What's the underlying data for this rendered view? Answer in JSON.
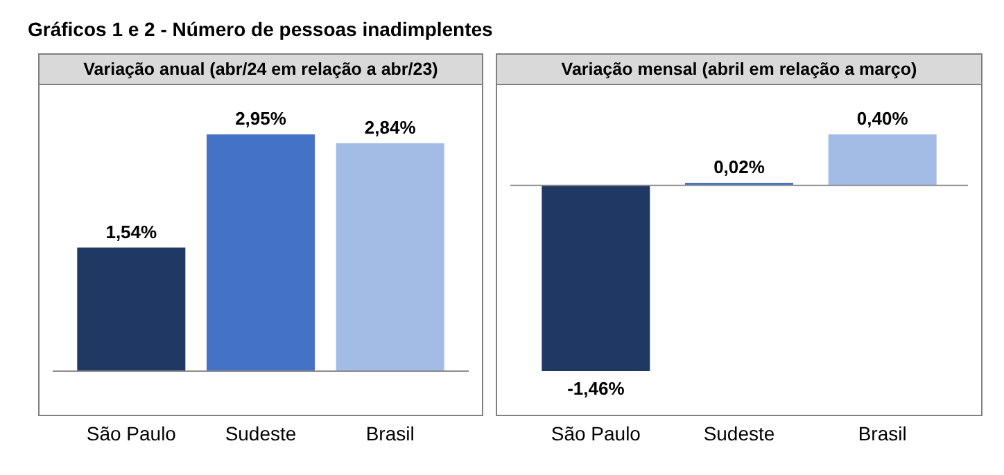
{
  "chart_data": [
    {
      "type": "bar",
      "title": "Gráficos 1 e 2 - Número de pessoas inadimplentes",
      "subtitle": "Variação anual (abr/24 em relação a abr/23)",
      "categories": [
        "São Paulo",
        "Sudeste",
        "Brasil"
      ],
      "values": [
        1.54,
        2.95,
        2.84
      ],
      "colors": [
        "#1f3864",
        "#4472c4",
        "#a3bce6"
      ],
      "value_labels": [
        "1,54%",
        "2,95%",
        "2,84%"
      ]
    },
    {
      "type": "bar",
      "subtitle": "Variação mensal (abril em relação a março)",
      "categories": [
        "São Paulo",
        "Sudeste",
        "Brasil"
      ],
      "values": [
        -1.46,
        0.02,
        0.4
      ],
      "colors": [
        "#1f3864",
        "#4472c4",
        "#a3bce6"
      ],
      "value_labels": [
        "-1,46%",
        "0,02%",
        "0,40%"
      ]
    }
  ]
}
